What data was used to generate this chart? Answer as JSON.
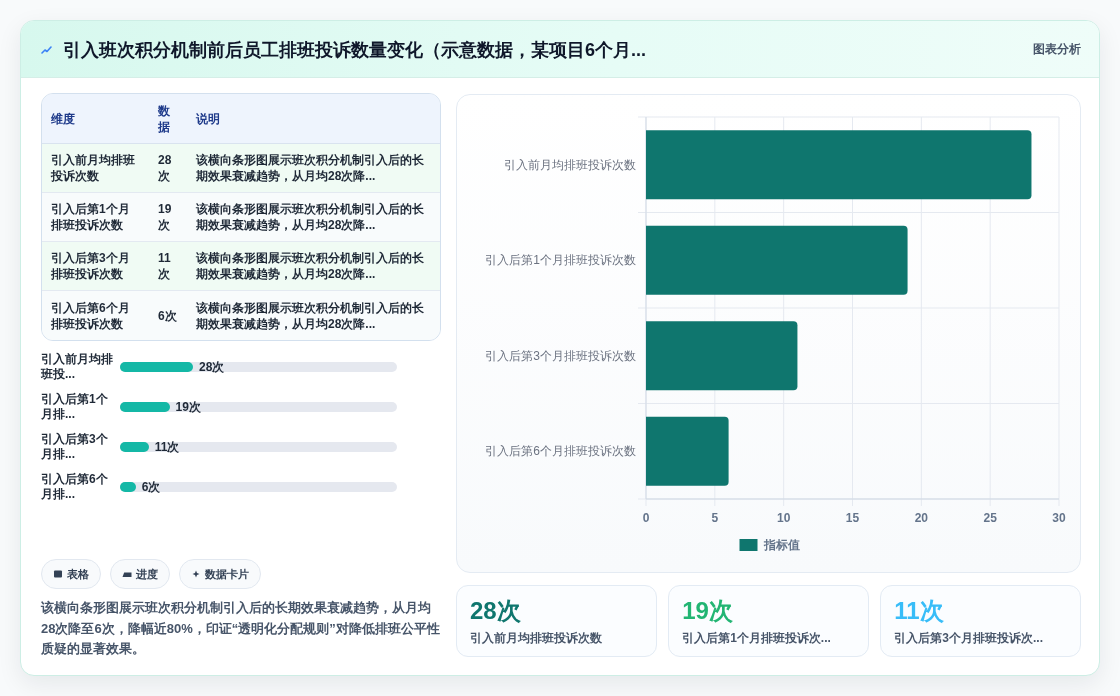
{
  "chart_data": [
    {
      "type": "bar",
      "orientation": "horizontal",
      "title": "引入班次积分机制前后员工排班投诉数量变化（示意数据，某项目6个月...",
      "annotations": [
        "图表分析"
      ],
      "categories": [
        "引入前月均排班投诉次数",
        "引入后第1个月排班投诉次数",
        "引入后第3个月排班投诉次数",
        "引入后第6个月排班投诉次数"
      ],
      "series": [
        {
          "name": "指标值",
          "color": "#0f766e",
          "values": [
            28,
            19,
            11,
            6
          ]
        }
      ],
      "xlim": [
        0,
        30
      ],
      "xticks": [
        0,
        5,
        10,
        15,
        20,
        25,
        30
      ],
      "grid": true,
      "legend": "bottom"
    },
    {
      "type": "other",
      "categories": [
        "引入前月均排班投诉次数",
        "引入后第1个月排班投诉次数",
        "引入后第3个月排班投诉次数",
        "引入后第6个月排班投诉次数"
      ],
      "value_labels": [
        "28次",
        "19次",
        "11次",
        "6次"
      ],
      "annotations": [
        "维度",
        "数据",
        "说明",
        "该横向条形图展示班次积分机制引入后的长期效果衰减趋势，从月均28次降...",
        "该横向条形图展示班次积分机制引入后的长期效果衰减趋势，从月均28次降...",
        "该横向条形图展示班次积分机制引入后的长期效果衰减趋势，从月均28次降...",
        "该横向条形图展示班次积分机制引入后的长期效果衰减趋势，从月均28次降..."
      ]
    },
    {
      "type": "bar",
      "orientation": "horizontal",
      "categories": [
        "引入前月均排班投...",
        "引入后第1个月排...",
        "引入后第3个月排...",
        "引入后第6个月排..."
      ],
      "values": [
        28,
        19,
        11,
        6
      ],
      "value_labels": [
        "28次",
        "19次",
        "11次",
        "6次"
      ],
      "color": "#14b8a6",
      "tick_labels": "y"
    },
    {
      "type": "other",
      "annotations": [
        "表格",
        "进度",
        "数据卡片",
        "该横向条形图展示班次积分机制引入后的长期效果衰减趋势，从月均28次降至6次，降幅近80%，印证“透明化分配规则”对降低排班公平性质疑的显著效果。"
      ]
    },
    {
      "type": "other",
      "categories": [
        "引入前月均排班投诉次数",
        "引入后第1个月排班投诉次...",
        "引入后第3个月排班投诉次..."
      ],
      "value_labels": [
        "28次",
        "19次",
        "11次"
      ]
    }
  ]
}
